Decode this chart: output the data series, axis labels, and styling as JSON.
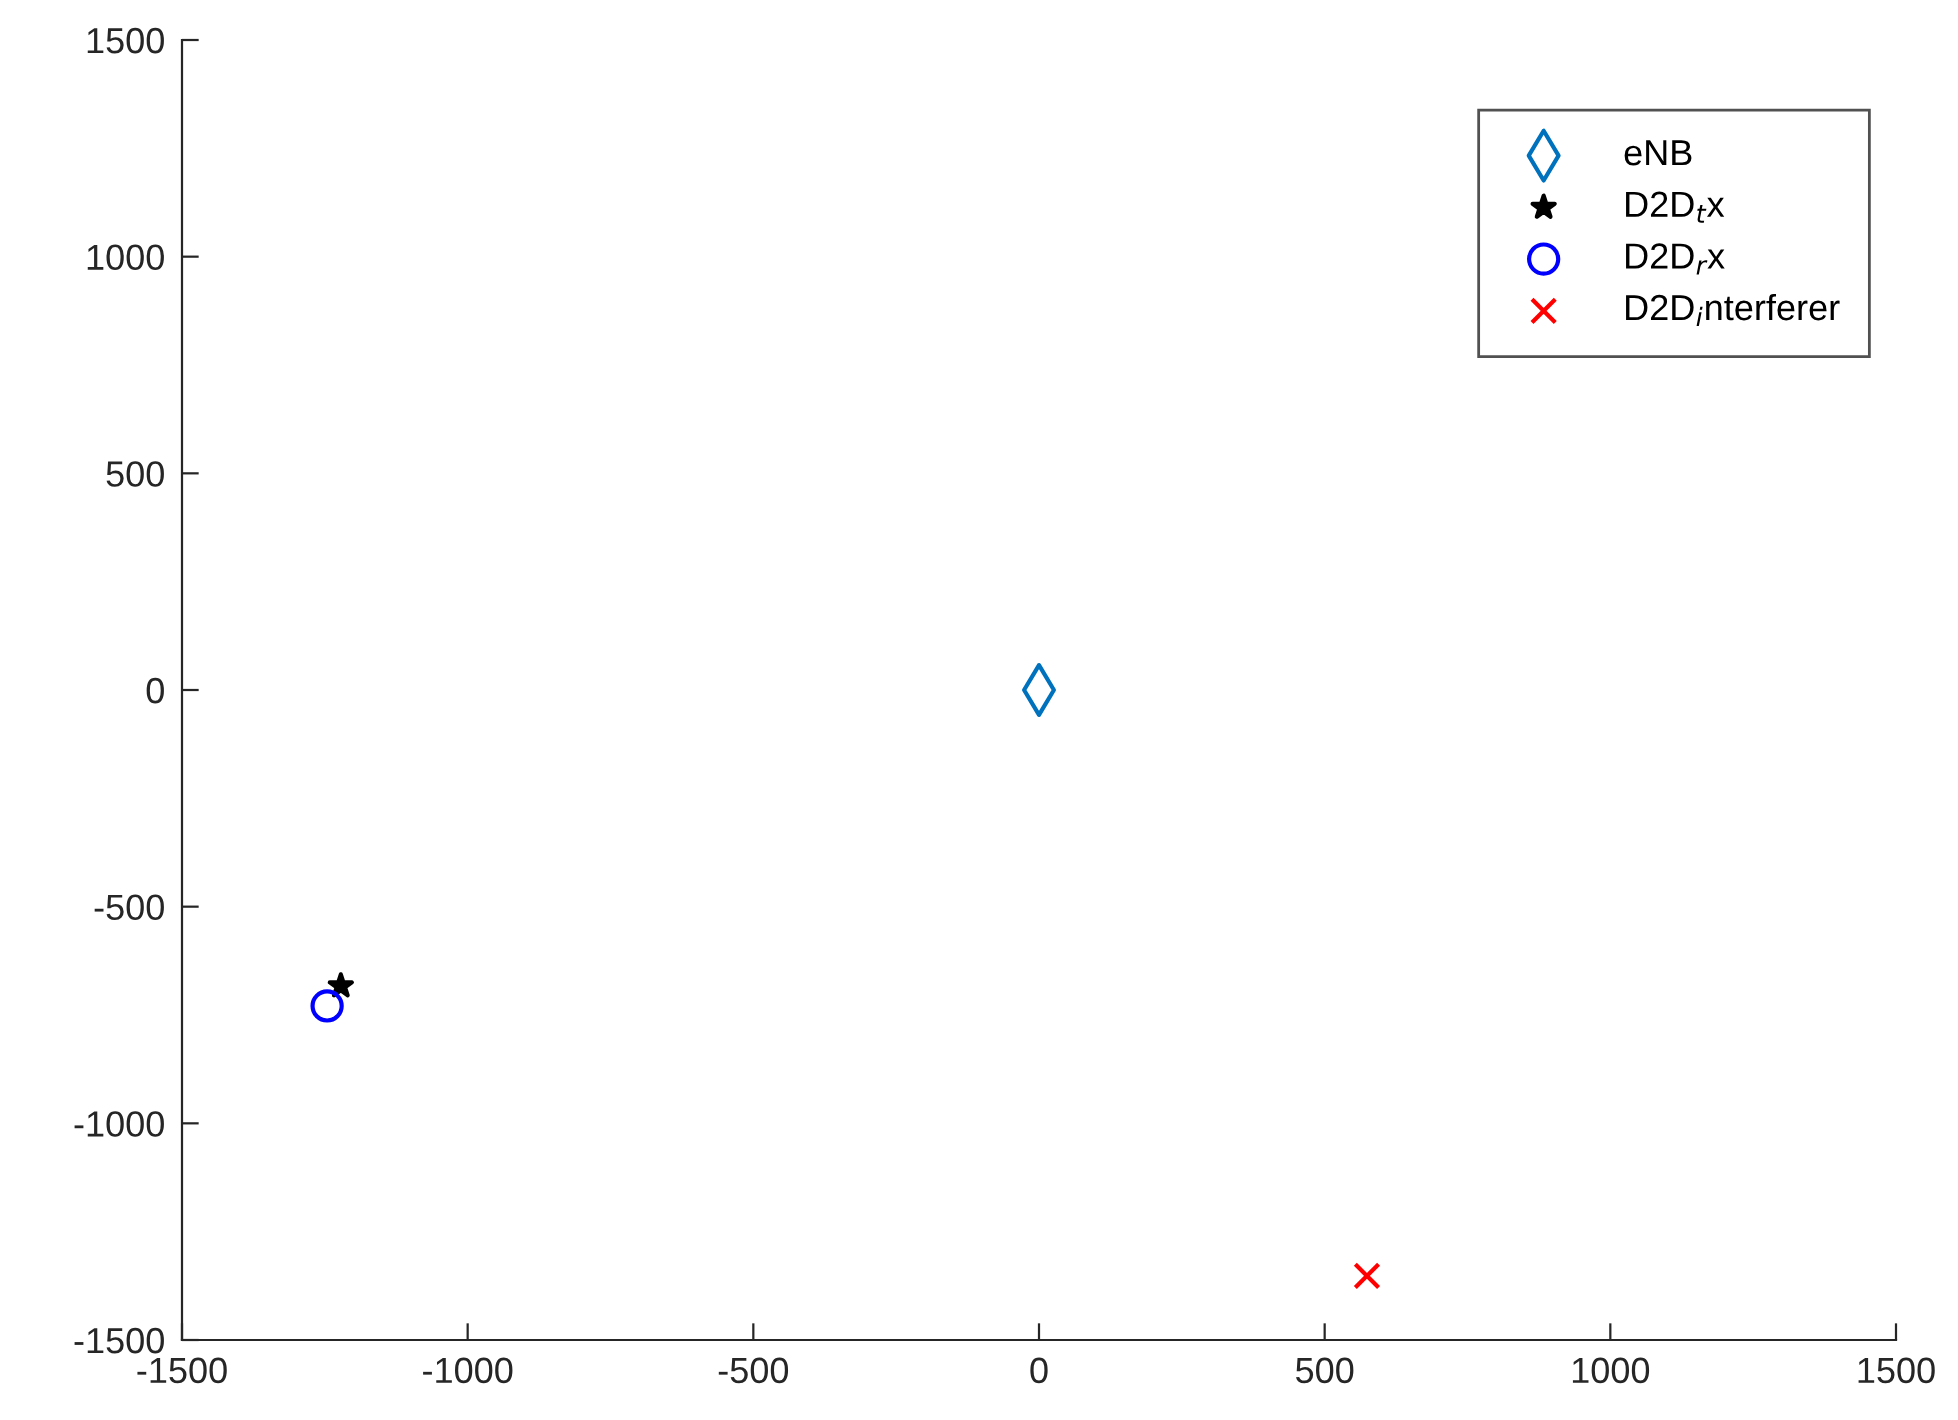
{
  "chart_data": {
    "type": "scatter",
    "series": [
      {
        "name": "eNB",
        "color": "#0072bd",
        "marker": "diamond",
        "x": [
          0
        ],
        "values": [
          0
        ]
      },
      {
        "name": "D2D$_{t}$x",
        "color": "#000000",
        "marker": "star",
        "x": [
          -1222
        ],
        "values": [
          -683
        ]
      },
      {
        "name": "D2D$_{r}$x",
        "color": "#0000ff",
        "marker": "circle",
        "x": [
          -1246
        ],
        "values": [
          -729
        ]
      },
      {
        "name": "D2D$_{i}$nterferer",
        "color": "#ff0000",
        "marker": "cross",
        "x": [
          574
        ],
        "values": [
          -1352
        ]
      }
    ],
    "xlim": [
      -1500,
      1500
    ],
    "xticks": [
      -1500,
      -1000,
      -500,
      0,
      500,
      1000,
      1500
    ],
    "ylim": [
      -1500,
      1500
    ],
    "yticks": [
      -1500,
      -1000,
      -500,
      0,
      500,
      1000,
      1500
    ],
    "grid": false,
    "legend": "top right"
  }
}
